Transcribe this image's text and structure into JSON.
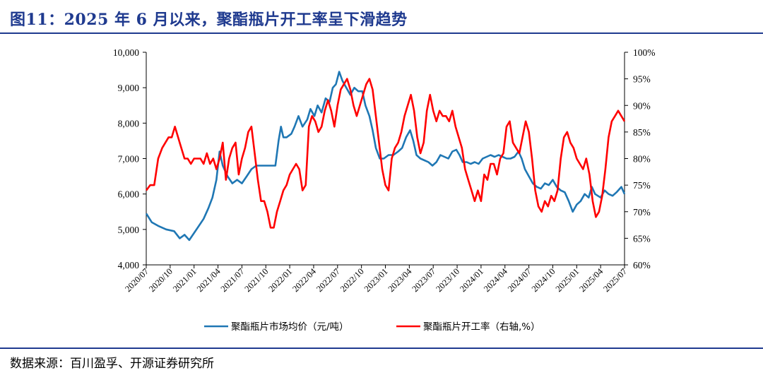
{
  "figure": {
    "title": "图11：2025 年 6 月以来，聚酯瓶片开工率呈下滑趋势",
    "source": "数据来源：百川盈孚、开源证券研究所"
  },
  "chart_data": {
    "type": "line",
    "x_labels": [
      "2020/07",
      "2020/10",
      "2021/01",
      "2021/04",
      "2021/07",
      "2021/10",
      "2022/01",
      "2022/04",
      "2022/07",
      "2022/10",
      "2023/01",
      "2023/04",
      "2023/07",
      "2023/10",
      "2024/01",
      "2024/04",
      "2024/07",
      "2024/10",
      "2025/01",
      "2025/04",
      "2025/07"
    ],
    "y_left": {
      "ticks": [
        "4,000",
        "5,000",
        "6,000",
        "7,000",
        "8,000",
        "9,000",
        "10,000"
      ],
      "min": 4000,
      "max": 10000
    },
    "y_right": {
      "ticks": [
        "60%",
        "65%",
        "70%",
        "75%",
        "80%",
        "85%",
        "90%",
        "95%",
        "100%"
      ],
      "min": 60,
      "max": 100
    },
    "x_range_months": [
      0,
      60
    ],
    "series": [
      {
        "name": "聚酯瓶片市场均价（元/吨）",
        "axis": "left",
        "color": "#1f77b4",
        "points": [
          [
            0,
            5450
          ],
          [
            0.7,
            5200
          ],
          [
            1.5,
            5100
          ],
          [
            2.5,
            5000
          ],
          [
            3.5,
            4950
          ],
          [
            4.2,
            4750
          ],
          [
            4.8,
            4850
          ],
          [
            5.4,
            4700
          ],
          [
            6,
            4900
          ],
          [
            6.6,
            5100
          ],
          [
            7.2,
            5300
          ],
          [
            7.8,
            5600
          ],
          [
            8.3,
            5900
          ],
          [
            8.8,
            6400
          ],
          [
            9.2,
            7200
          ],
          [
            9.6,
            6800
          ],
          [
            10.2,
            6500
          ],
          [
            10.8,
            6300
          ],
          [
            11.4,
            6400
          ],
          [
            12,
            6300
          ],
          [
            12.6,
            6500
          ],
          [
            13.2,
            6700
          ],
          [
            13.8,
            6800
          ],
          [
            14.4,
            6800
          ],
          [
            15,
            6800
          ],
          [
            15.6,
            6800
          ],
          [
            16.2,
            6800
          ],
          [
            16.6,
            7500
          ],
          [
            16.9,
            7900
          ],
          [
            17.2,
            7600
          ],
          [
            17.6,
            7600
          ],
          [
            18.2,
            7700
          ],
          [
            18.6,
            7900
          ],
          [
            19.1,
            8200
          ],
          [
            19.6,
            7900
          ],
          [
            20.2,
            8100
          ],
          [
            20.6,
            8400
          ],
          [
            21.1,
            8200
          ],
          [
            21.5,
            8500
          ],
          [
            22,
            8300
          ],
          [
            22.5,
            8700
          ],
          [
            23,
            8600
          ],
          [
            23.4,
            9000
          ],
          [
            23.8,
            9100
          ],
          [
            24.2,
            9450
          ],
          [
            24.6,
            9200
          ],
          [
            25.1,
            9000
          ],
          [
            25.6,
            8800
          ],
          [
            26.1,
            9000
          ],
          [
            26.6,
            8900
          ],
          [
            27.1,
            8900
          ],
          [
            27.5,
            8500
          ],
          [
            28,
            8200
          ],
          [
            28.4,
            7800
          ],
          [
            28.8,
            7300
          ],
          [
            29.3,
            7000
          ],
          [
            29.8,
            7000
          ],
          [
            30.4,
            7100
          ],
          [
            31,
            7100
          ],
          [
            31.6,
            7200
          ],
          [
            32.1,
            7300
          ],
          [
            32.6,
            7600
          ],
          [
            33.1,
            7800
          ],
          [
            33.5,
            7500
          ],
          [
            33.9,
            7100
          ],
          [
            34.4,
            7000
          ],
          [
            34.9,
            6950
          ],
          [
            35.4,
            6900
          ],
          [
            35.9,
            6800
          ],
          [
            36.4,
            6900
          ],
          [
            36.9,
            7100
          ],
          [
            37.4,
            7050
          ],
          [
            37.9,
            7000
          ],
          [
            38.4,
            7200
          ],
          [
            38.9,
            7250
          ],
          [
            39.3,
            7100
          ],
          [
            39.7,
            6900
          ],
          [
            40.2,
            6900
          ],
          [
            40.7,
            6850
          ],
          [
            41.2,
            6900
          ],
          [
            41.7,
            6850
          ],
          [
            42.2,
            7000
          ],
          [
            42.7,
            7050
          ],
          [
            43.2,
            7100
          ],
          [
            43.7,
            7050
          ],
          [
            44.2,
            7100
          ],
          [
            44.7,
            7050
          ],
          [
            45.2,
            7000
          ],
          [
            45.7,
            7000
          ],
          [
            46.2,
            7050
          ],
          [
            46.7,
            7200
          ],
          [
            47.1,
            7000
          ],
          [
            47.5,
            6700
          ],
          [
            48,
            6500
          ],
          [
            48.5,
            6300
          ],
          [
            49,
            6200
          ],
          [
            49.5,
            6150
          ],
          [
            50,
            6300
          ],
          [
            50.5,
            6250
          ],
          [
            51,
            6400
          ],
          [
            51.5,
            6200
          ],
          [
            52,
            6100
          ],
          [
            52.5,
            6050
          ],
          [
            53,
            5800
          ],
          [
            53.5,
            5500
          ],
          [
            54,
            5700
          ],
          [
            54.5,
            5800
          ],
          [
            55,
            6000
          ],
          [
            55.5,
            5900
          ],
          [
            55.9,
            6200
          ],
          [
            56.3,
            6000
          ],
          [
            57,
            5900
          ],
          [
            57.5,
            6100
          ],
          [
            58,
            6000
          ],
          [
            58.5,
            5950
          ],
          [
            59,
            6050
          ],
          [
            59.6,
            6200
          ],
          [
            60,
            6000
          ]
        ]
      },
      {
        "name": "聚酯瓶片开工率（右轴,%）",
        "axis": "right",
        "color": "#ff0000",
        "points": [
          [
            0,
            74
          ],
          [
            0.5,
            75
          ],
          [
            1,
            75
          ],
          [
            1.5,
            80
          ],
          [
            2,
            82
          ],
          [
            2.4,
            83
          ],
          [
            2.8,
            84
          ],
          [
            3.2,
            84
          ],
          [
            3.6,
            86
          ],
          [
            4,
            84
          ],
          [
            4.4,
            82
          ],
          [
            4.8,
            80
          ],
          [
            5.2,
            80
          ],
          [
            5.6,
            79
          ],
          [
            6,
            80
          ],
          [
            6.4,
            80
          ],
          [
            6.8,
            80
          ],
          [
            7.2,
            79
          ],
          [
            7.6,
            81
          ],
          [
            8,
            79
          ],
          [
            8.4,
            80
          ],
          [
            8.8,
            78
          ],
          [
            9.2,
            80
          ],
          [
            9.6,
            83
          ],
          [
            10,
            76
          ],
          [
            10.4,
            80
          ],
          [
            10.8,
            82
          ],
          [
            11.2,
            83
          ],
          [
            11.6,
            77
          ],
          [
            12,
            80
          ],
          [
            12.4,
            82
          ],
          [
            12.8,
            85
          ],
          [
            13.2,
            86
          ],
          [
            13.6,
            81
          ],
          [
            14,
            76
          ],
          [
            14.4,
            72
          ],
          [
            14.8,
            72
          ],
          [
            15.2,
            70
          ],
          [
            15.6,
            67
          ],
          [
            16,
            67
          ],
          [
            16.4,
            70
          ],
          [
            16.8,
            72
          ],
          [
            17.2,
            74
          ],
          [
            17.6,
            75
          ],
          [
            18,
            77
          ],
          [
            18.4,
            78
          ],
          [
            18.8,
            79
          ],
          [
            19.2,
            78
          ],
          [
            19.6,
            74
          ],
          [
            20,
            75
          ],
          [
            20.4,
            86
          ],
          [
            20.8,
            88
          ],
          [
            21.2,
            87
          ],
          [
            21.6,
            85
          ],
          [
            22,
            86
          ],
          [
            22.4,
            89
          ],
          [
            22.8,
            91
          ],
          [
            23.2,
            89
          ],
          [
            23.6,
            86
          ],
          [
            24,
            90
          ],
          [
            24.4,
            93
          ],
          [
            24.8,
            94
          ],
          [
            25.2,
            95
          ],
          [
            25.6,
            93
          ],
          [
            26,
            90
          ],
          [
            26.4,
            88
          ],
          [
            26.8,
            90
          ],
          [
            27.2,
            92
          ],
          [
            27.6,
            94
          ],
          [
            28,
            95
          ],
          [
            28.4,
            93
          ],
          [
            28.8,
            88
          ],
          [
            29.2,
            83
          ],
          [
            29.6,
            78
          ],
          [
            30,
            75
          ],
          [
            30.4,
            74
          ],
          [
            30.8,
            80
          ],
          [
            31.2,
            82
          ],
          [
            31.6,
            83
          ],
          [
            32,
            85
          ],
          [
            32.4,
            88
          ],
          [
            32.8,
            90
          ],
          [
            33.2,
            92
          ],
          [
            33.6,
            89
          ],
          [
            34,
            84
          ],
          [
            34.4,
            81
          ],
          [
            34.8,
            83
          ],
          [
            35.2,
            89
          ],
          [
            35.6,
            92
          ],
          [
            36,
            89
          ],
          [
            36.4,
            87
          ],
          [
            36.8,
            89
          ],
          [
            37.2,
            88
          ],
          [
            37.6,
            88
          ],
          [
            38,
            87
          ],
          [
            38.4,
            89
          ],
          [
            38.8,
            86
          ],
          [
            39.2,
            84
          ],
          [
            39.6,
            82
          ],
          [
            40,
            78
          ],
          [
            40.4,
            76
          ],
          [
            40.8,
            74
          ],
          [
            41.2,
            72
          ],
          [
            41.6,
            74
          ],
          [
            42,
            72
          ],
          [
            42.4,
            77
          ],
          [
            42.8,
            76
          ],
          [
            43.2,
            79
          ],
          [
            43.6,
            79
          ],
          [
            44,
            77
          ],
          [
            44.4,
            80
          ],
          [
            44.8,
            81
          ],
          [
            45.2,
            86
          ],
          [
            45.6,
            87
          ],
          [
            46,
            83
          ],
          [
            46.4,
            82
          ],
          [
            46.8,
            81
          ],
          [
            47.2,
            84
          ],
          [
            47.6,
            87
          ],
          [
            48,
            85
          ],
          [
            48.4,
            80
          ],
          [
            48.8,
            74
          ],
          [
            49.2,
            71
          ],
          [
            49.6,
            70
          ],
          [
            50,
            72
          ],
          [
            50.4,
            71
          ],
          [
            50.8,
            73
          ],
          [
            51.2,
            72
          ],
          [
            51.6,
            74
          ],
          [
            52,
            80
          ],
          [
            52.4,
            84
          ],
          [
            52.8,
            85
          ],
          [
            53.2,
            83
          ],
          [
            53.6,
            82
          ],
          [
            54,
            80
          ],
          [
            54.4,
            79
          ],
          [
            54.8,
            78
          ],
          [
            55.2,
            80
          ],
          [
            55.6,
            77
          ],
          [
            56,
            72
          ],
          [
            56.4,
            69
          ],
          [
            56.8,
            70
          ],
          [
            57.2,
            73
          ],
          [
            57.6,
            78
          ],
          [
            58,
            84
          ],
          [
            58.4,
            87
          ],
          [
            58.8,
            88
          ],
          [
            59.2,
            89
          ],
          [
            59.6,
            88
          ],
          [
            60,
            87
          ]
        ]
      }
    ],
    "legend": [
      {
        "label": "聚酯瓶片市场均价（元/吨）",
        "color": "#1f77b4"
      },
      {
        "label": "聚酯瓶片开工率（右轴,%）",
        "color": "#ff0000"
      }
    ],
    "grid": false,
    "legend_position": "bottom"
  }
}
